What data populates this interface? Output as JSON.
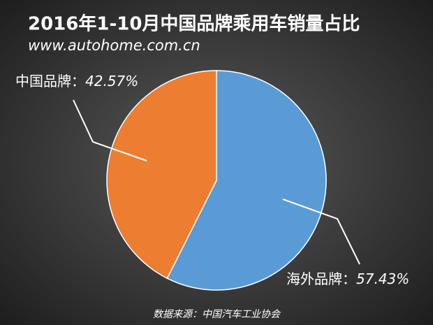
{
  "chart_data": {
    "type": "pie",
    "title": "2016年1-10月中国品牌乘用车销量占比",
    "subtitle": "www.autohome.com.cn",
    "source": "数据来源：中国汽车工业协会",
    "categories": [
      "海外品牌",
      "中国品牌"
    ],
    "values": [
      57.43,
      42.57
    ],
    "value_labels": [
      "57.43%",
      "42.57%"
    ],
    "label_separator": "：",
    "colors": [
      "#5b9bd5",
      "#ed7d31"
    ]
  }
}
